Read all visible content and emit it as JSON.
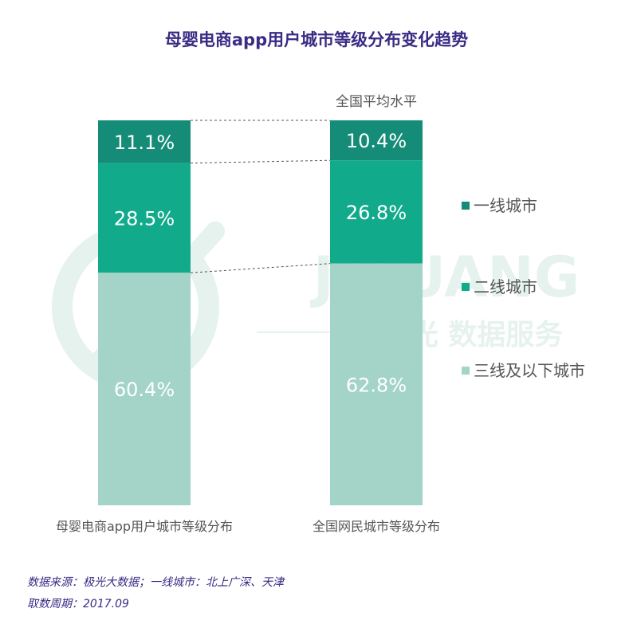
{
  "title": "母婴电商app用户城市等级分布变化趋势",
  "colors": {
    "tier1": "#148c77",
    "tier2": "#11ab8c",
    "tier3": "#a3d4c7",
    "title": "#3a2b84",
    "label_text": "#ffffff",
    "axis_text": "#555555",
    "watermark": "#e6f2ee"
  },
  "watermark": {
    "brand": "JIGUANG",
    "subtitle": "极光 数据服务"
  },
  "chart_data": {
    "type": "bar",
    "stacked": true,
    "normalized_percent": true,
    "categories": [
      "母婴电商app用户城市等级分布",
      "全国网民城市等级分布"
    ],
    "category_annotations": [
      "",
      "全国平均水平"
    ],
    "series": [
      {
        "name": "一线城市",
        "values": [
          11.1,
          10.4
        ],
        "labels": [
          "11.1%",
          "10.4%"
        ],
        "color": "#148c77"
      },
      {
        "name": "二线城市",
        "values": [
          28.5,
          26.8
        ],
        "labels": [
          "28.5%",
          "26.8%"
        ],
        "color": "#11ab8c"
      },
      {
        "name": "三线及以下城市",
        "values": [
          60.4,
          62.8
        ],
        "labels": [
          "60.4%",
          "62.8%"
        ],
        "color": "#a3d4c7"
      }
    ],
    "ylim": [
      0,
      100
    ],
    "legend_position": "right",
    "grid": false,
    "xlabel": "",
    "ylabel": "",
    "series_connectors": "dashed"
  },
  "footnotes": {
    "source": "数据来源：极光大数据；一线城市：北上广深、天津",
    "period": "取数周期：2017.09"
  }
}
